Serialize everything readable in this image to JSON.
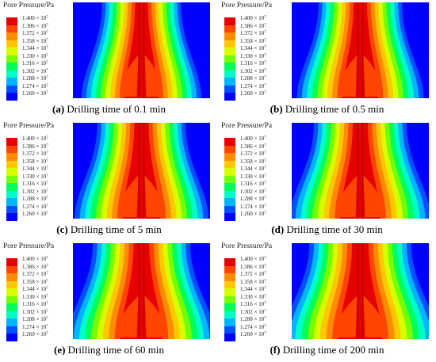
{
  "legend_title": "Pore Pressure/Pa",
  "legend_ticks": [
    "1.400",
    "1.386",
    "1.372",
    "1.358",
    "1.344",
    "1.330",
    "1.316",
    "1.302",
    "1.288",
    "1.274",
    "1.260"
  ],
  "legend_exponent_base": "10",
  "legend_exponent": "7",
  "legend_multiplier": "×",
  "colors": [
    "#e60000",
    "#ff4500",
    "#ff8c00",
    "#ffc800",
    "#d7ff00",
    "#73ff00",
    "#00ff5a",
    "#00ffc8",
    "#00b4ff",
    "#0050ff",
    "#0000ff"
  ],
  "panels": [
    {
      "letter": "(a)",
      "caption": "Drilling time of 0.1 min"
    },
    {
      "letter": "(b)",
      "caption": "Drilling time of 0.5 min"
    },
    {
      "letter": "(c)",
      "caption": "Drilling time of 5 min"
    },
    {
      "letter": "(d)",
      "caption": "Drilling time of 30 min"
    },
    {
      "letter": "(e)",
      "caption": "Drilling time of 60 min"
    },
    {
      "letter": "(f)",
      "caption": "Drilling time of 200 min"
    }
  ]
}
